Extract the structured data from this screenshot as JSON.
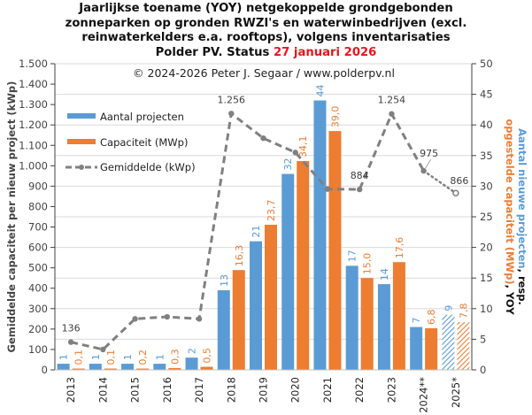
{
  "title": {
    "line1": "Jaarlijkse toename (YOY) netgekoppelde grondgebonden",
    "line2": "zonneparken op gronden RWZI's  en waterwinbedrijven (excl.",
    "line3": "reinwaterkelders e.a. rooftops), volgens inventarisaties",
    "line4_prefix": "Polder PV. Status ",
    "line4_date": "27 januari 2026"
  },
  "chart_data": {
    "type": "bar",
    "title": "Jaarlijkse toename (YOY) netgekoppelde grondgebonden zonneparken op gronden RWZI's en waterwinbedrijven (excl. reinwaterkelders e.a. rooftops), volgens inventarisaties Polder PV. Status 27 januari 2026",
    "copyright": "© 2024-2026  Peter J. Segaar / www.polderpv.nl",
    "categories": [
      "2013",
      "2014",
      "2015",
      "2016",
      "2017",
      "2018",
      "2019",
      "2020",
      "2021",
      "2022",
      "2023",
      "2024**",
      "2025*"
    ],
    "hatched_categories": [
      "2025*"
    ],
    "series": [
      {
        "name": "Aantal projecten",
        "type": "bar",
        "axis": "right",
        "color": "#5b9bd5",
        "values": [
          1,
          1,
          1,
          1,
          2,
          13,
          21,
          32,
          44,
          17,
          14,
          7,
          9
        ],
        "labels": [
          "1",
          "1",
          "1",
          "1",
          "2",
          "13",
          "21",
          "32",
          "44",
          "17",
          "14",
          "7",
          "9"
        ]
      },
      {
        "name": "Capaciteit (MWp)",
        "type": "bar",
        "axis": "right",
        "color": "#ed7d31",
        "values": [
          0.1,
          0.1,
          0.2,
          0.3,
          0.5,
          16.3,
          23.7,
          34.1,
          39.0,
          15.0,
          17.6,
          6.8,
          7.8
        ],
        "labels": [
          "0,1",
          "0,1",
          "0,2",
          "0,3",
          "0,5",
          "16,3",
          "23,7",
          "34,1",
          "39,0",
          "15,0",
          "17,6",
          "6,8",
          "7,8"
        ]
      },
      {
        "name": "Gemiddelde (kWp)",
        "type": "line",
        "axis": "left",
        "color": "#808080",
        "values": [
          136,
          100,
          250,
          260,
          250,
          1256,
          1135,
          1065,
          886,
          884,
          1254,
          975,
          866
        ],
        "labels": {
          "0": "136",
          "5": "1.256",
          "9": "884",
          "10": "1.254",
          "11": "975",
          "12": "866"
        }
      }
    ],
    "left_axis": {
      "label": "Gemiddelde capaciteit per nieuw project (kWp)",
      "range": [
        0,
        1500
      ],
      "ticks": [
        "0",
        "100",
        "200",
        "300",
        "400",
        "500",
        "600",
        "700",
        "800",
        "900",
        "1.000",
        "1.100",
        "1.200",
        "1.300",
        "1.400",
        "1.500"
      ]
    },
    "right_axis": {
      "label_part1": "Aantal nieuwe projecten",
      "label_part2": ", resp.",
      "label_part3": "opgestelde capaciteit (MWp)",
      "label_part4": ", YOY",
      "range": [
        0,
        50
      ],
      "ticks": [
        "0",
        "5",
        "10",
        "15",
        "20",
        "25",
        "30",
        "35",
        "40",
        "45",
        "50"
      ]
    },
    "legend": {
      "placement": "top-left",
      "items": [
        "Aantal projecten",
        "Capaciteit (MWp)",
        "Gemiddelde (kWp)"
      ]
    },
    "grid": true
  }
}
